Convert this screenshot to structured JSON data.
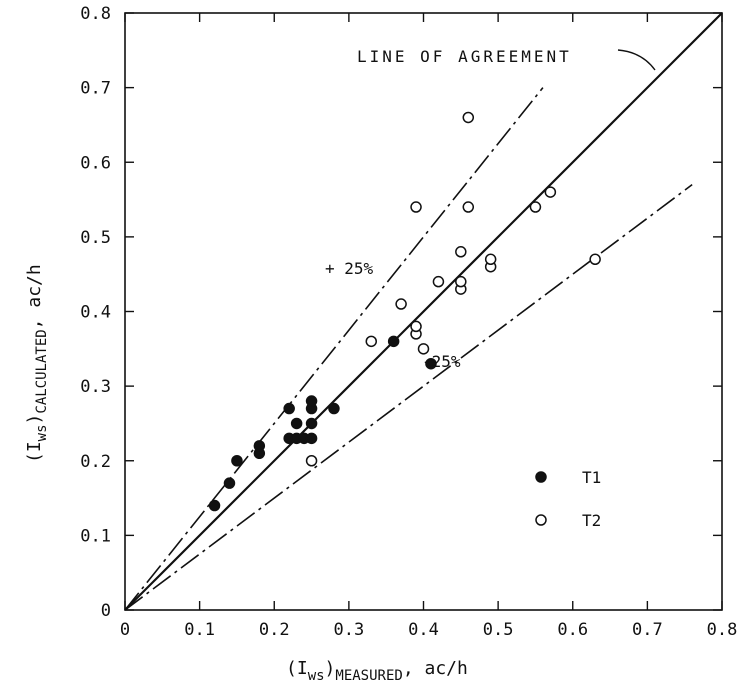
{
  "chart_data": {
    "type": "scatter",
    "xlabel": {
      "prefix": "(I",
      "sub1": "ws",
      "mid": ")",
      "sub2": "MEASURED",
      "suffix": ", ac/h"
    },
    "ylabel": {
      "prefix": "(I",
      "sub1": "ws",
      "mid": ")",
      "sub2": "CALCULATED",
      "suffix": ", ac/h"
    },
    "xlim": [
      0,
      0.8
    ],
    "ylim": [
      0,
      0.8
    ],
    "x_ticks": [
      0,
      0.1,
      0.2,
      0.3,
      0.4,
      0.5,
      0.6,
      0.7,
      0.8
    ],
    "y_ticks": [
      0,
      0.1,
      0.2,
      0.3,
      0.4,
      0.5,
      0.6,
      0.7,
      0.8
    ],
    "x_tick_labels": [
      "0",
      "0.1",
      "0.2",
      "0.3",
      "0.4",
      "0.5",
      "0.6",
      "0.7",
      "0.8"
    ],
    "y_tick_labels": [
      "0",
      "0.1",
      "0.2",
      "0.3",
      "0.4",
      "0.5",
      "0.6",
      "0.7",
      "0.8"
    ],
    "grid": false,
    "lines": [
      {
        "label": "LINE OF AGREEMENT",
        "style": "solid",
        "slope": 1.0,
        "x_end": 0.8
      },
      {
        "label": "+ 25%",
        "style": "dash-dot",
        "slope": 1.25,
        "x_end": 0.56
      },
      {
        "label": "-25%",
        "style": "dash-dot",
        "slope": 0.75,
        "x_end": 0.76
      }
    ],
    "series": [
      {
        "name": "T1",
        "marker": "filled-circle",
        "points": [
          [
            0.12,
            0.14
          ],
          [
            0.14,
            0.17
          ],
          [
            0.15,
            0.2
          ],
          [
            0.18,
            0.21
          ],
          [
            0.18,
            0.22
          ],
          [
            0.22,
            0.23
          ],
          [
            0.22,
            0.27
          ],
          [
            0.23,
            0.23
          ],
          [
            0.23,
            0.25
          ],
          [
            0.24,
            0.23
          ],
          [
            0.25,
            0.23
          ],
          [
            0.25,
            0.25
          ],
          [
            0.25,
            0.27
          ],
          [
            0.25,
            0.28
          ],
          [
            0.28,
            0.27
          ],
          [
            0.36,
            0.36
          ],
          [
            0.41,
            0.33
          ]
        ]
      },
      {
        "name": "T2",
        "marker": "open-circle",
        "points": [
          [
            0.25,
            0.2
          ],
          [
            0.33,
            0.36
          ],
          [
            0.37,
            0.41
          ],
          [
            0.39,
            0.37
          ],
          [
            0.39,
            0.38
          ],
          [
            0.39,
            0.54
          ],
          [
            0.4,
            0.35
          ],
          [
            0.42,
            0.44
          ],
          [
            0.45,
            0.43
          ],
          [
            0.45,
            0.44
          ],
          [
            0.45,
            0.48
          ],
          [
            0.46,
            0.54
          ],
          [
            0.46,
            0.66
          ],
          [
            0.49,
            0.46
          ],
          [
            0.49,
            0.47
          ],
          [
            0.55,
            0.54
          ],
          [
            0.57,
            0.56
          ],
          [
            0.63,
            0.47
          ]
        ]
      }
    ],
    "legend": {
      "placement": "lower-right",
      "entries": [
        "T1",
        "T2"
      ]
    }
  }
}
